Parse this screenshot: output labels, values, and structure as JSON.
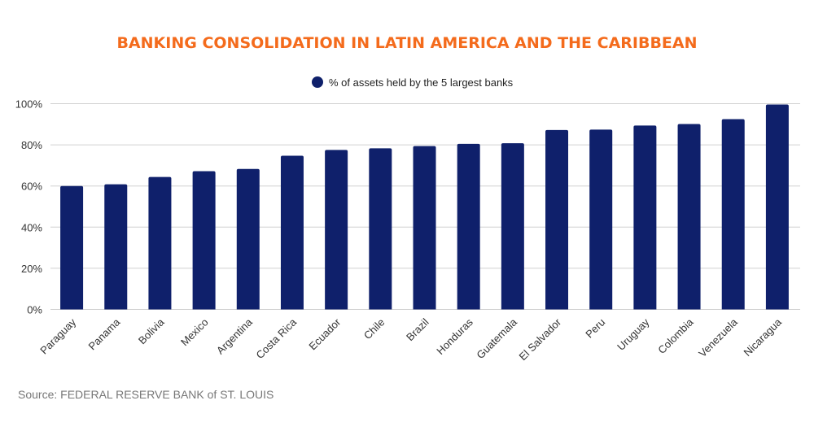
{
  "chart_data": {
    "type": "bar",
    "title": "BANKING CONSOLIDATION IN LATIN AMERICA AND THE CARIBBEAN",
    "categories": [
      "Paraguay",
      "Panama",
      "Bolivia",
      "Mexico",
      "Argentina",
      "Costa Rica",
      "Ecuador",
      "Chile",
      "Brazil",
      "Honduras",
      "Guatemala",
      "El Salvador",
      "Peru",
      "Uruguay",
      "Colombia",
      "Venezuela",
      "Nicaragua"
    ],
    "series": [
      {
        "name": "% of assets held by the 5 largest banks",
        "values": [
          60,
          60.8,
          64.4,
          67.2,
          68.3,
          74.7,
          77.5,
          78.3,
          79.4,
          80.5,
          80.8,
          87.2,
          87.4,
          89.4,
          90.1,
          92.5,
          99.6
        ]
      }
    ],
    "xlabel": "",
    "ylabel": "",
    "ylim": [
      0,
      100
    ],
    "yticks": [
      "0%",
      "20%",
      "40%",
      "60%",
      "80%",
      "100%"
    ],
    "grid": true,
    "legend_position": "top-center",
    "source": "Source: FEDERAL RESERVE BANK of ST. LOUIS",
    "colors": {
      "bar": "#0f206b",
      "title": "#f46b1c",
      "grid": "#d0d0d0"
    }
  }
}
